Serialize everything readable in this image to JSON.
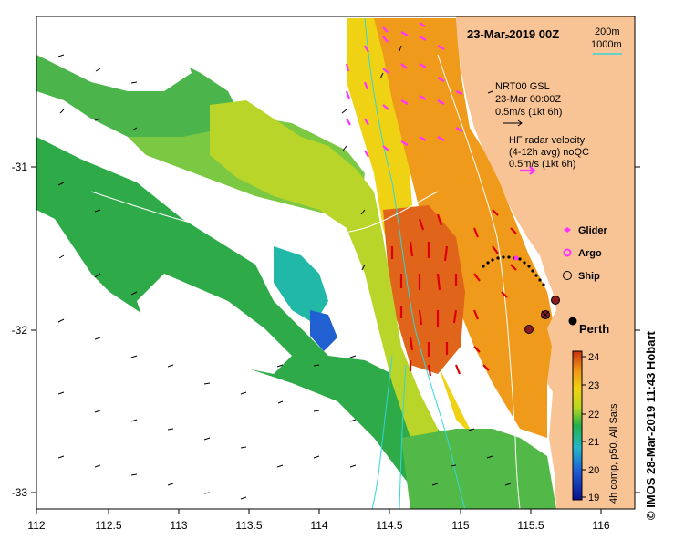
{
  "title": "23-Mar-2019 00Z",
  "isobaths": {
    "line1": "200m",
    "line2": "1000m",
    "color": "#33d6d6"
  },
  "gsl": {
    "line1": "NRT00 GSL",
    "line2": "23-Mar 00:00Z",
    "line3": "0.5m/s (1kt 6h)"
  },
  "hf": {
    "line1": "HF radar velocity",
    "line2": "(4-12h avg) noQC",
    "line3": "0.5m/s (1kt 6h)"
  },
  "symbols": {
    "glider": "Glider",
    "argo": "Argo",
    "ship": "Ship"
  },
  "place": "Perth",
  "colorbar": {
    "ticks": [
      "24",
      "23",
      "22",
      "21",
      "20",
      "19"
    ],
    "label": "4h comp, p50, All Sats"
  },
  "x_ticks": [
    "112",
    "112.5",
    "113",
    "113.5",
    "114",
    "114.5",
    "115",
    "115.5",
    "116"
  ],
  "y_ticks": [
    "-31",
    "-32",
    "-33"
  ],
  "credit": "© IMOS 28-Mar-2019 11:43 Hobart",
  "colors": {
    "land": "#f8c496",
    "hf_arrow": "#ff33ff",
    "current_arrow": "#dd0000",
    "glider": "#ff33ff"
  }
}
